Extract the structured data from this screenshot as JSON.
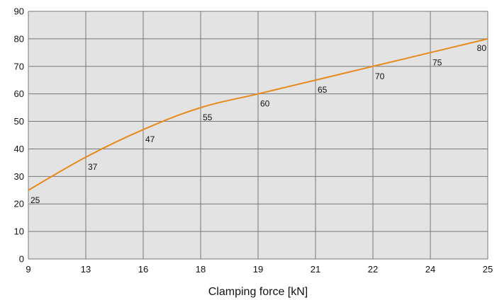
{
  "chart_data": {
    "type": "line",
    "title": "",
    "xlabel": "Clamping force [kN]",
    "ylabel": "",
    "categories": [
      "9",
      "13",
      "16",
      "18",
      "19",
      "21",
      "22",
      "24",
      "25"
    ],
    "values": [
      25,
      37,
      47,
      55,
      60,
      65,
      70,
      75,
      80
    ],
    "data_labels": [
      "25",
      "37",
      "47",
      "55",
      "60",
      "65",
      "70",
      "75",
      "80"
    ],
    "yticks": [
      "0",
      "10",
      "20",
      "30",
      "40",
      "50",
      "60",
      "70",
      "80",
      "90"
    ],
    "ylim": [
      0,
      90
    ],
    "grid": true,
    "legend": "none",
    "colors": {
      "line": "#e8891c",
      "plot_background": "#e3e3e3",
      "grid": "#777777",
      "text": "#111111"
    }
  }
}
